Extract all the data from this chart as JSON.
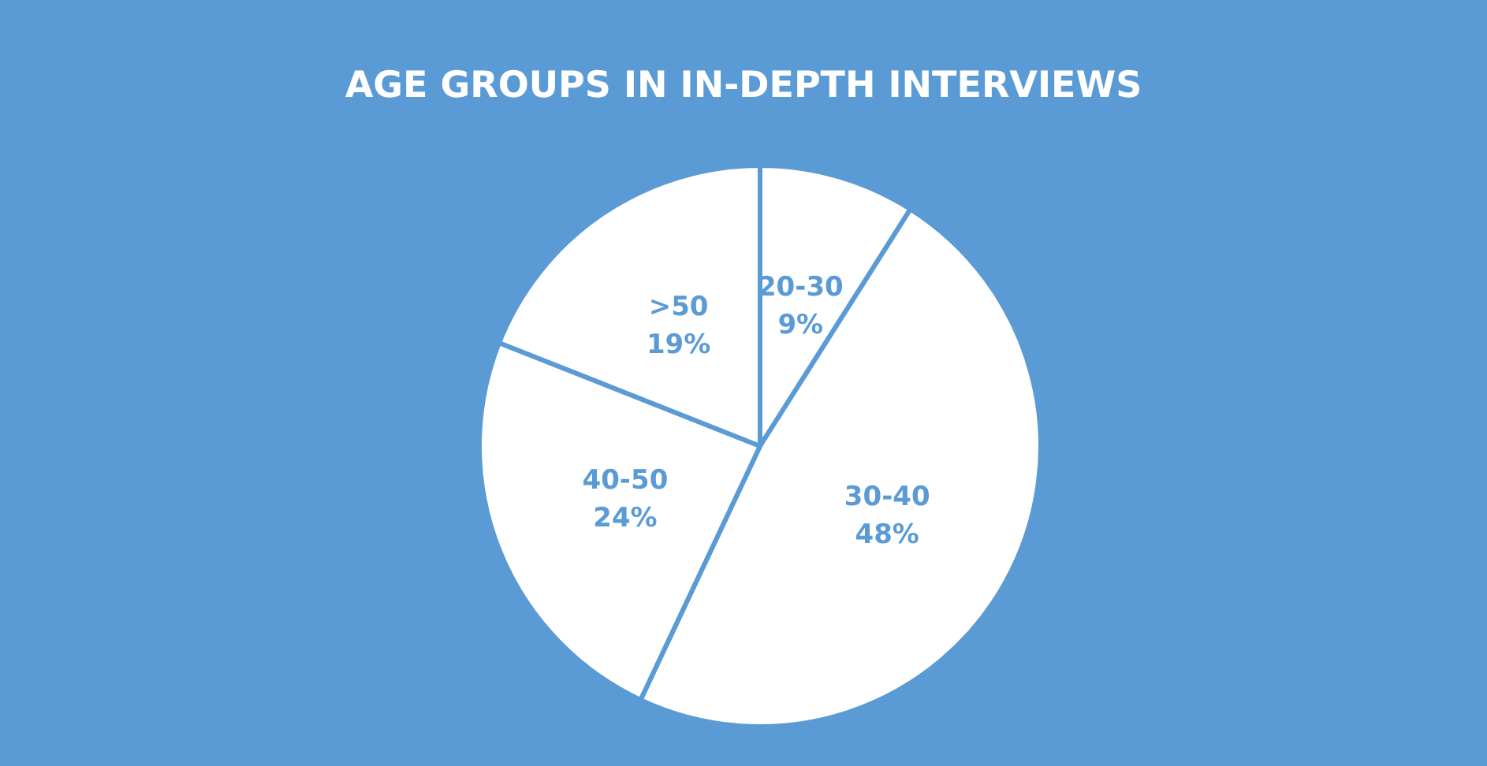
{
  "chart_data": {
    "type": "pie",
    "title": "AGE GROUPS IN IN-DEPTH INTERVIEWS",
    "categories": [
      "20-30",
      "30-40",
      "40-50",
      ">50"
    ],
    "values": [
      9,
      48,
      24,
      19
    ],
    "value_labels": [
      "9%",
      "48%",
      "24%",
      "19%"
    ],
    "colors": [
      "#ffffff",
      "#ffffff",
      "#ffffff",
      "#ffffff"
    ],
    "legend": false
  }
}
